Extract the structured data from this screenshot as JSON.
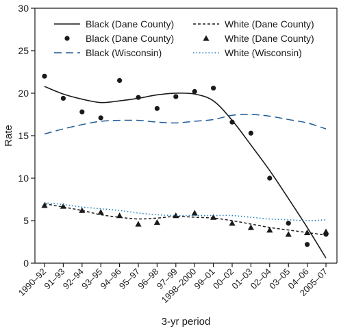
{
  "chart_data": {
    "type": "line",
    "xlabel": "3-yr period",
    "ylabel": "Rate",
    "ylim": [
      0,
      30
    ],
    "yticks": [
      0,
      5,
      10,
      15,
      20,
      25,
      30
    ],
    "grid": false,
    "legend_position": "top",
    "categories": [
      "1990–92",
      "91–93",
      "92–94",
      "93–95",
      "94–96",
      "95–97",
      "96–98",
      "97–99",
      "1998–2000",
      "99–01",
      "00–02",
      "01–03",
      "02–04",
      "03–05",
      "04–06",
      "2005–07"
    ],
    "series": [
      {
        "name": "Black (Dane County)",
        "kind": "smoothed-line",
        "color": "#1a1a1a",
        "dash": "solid",
        "values": [
          20.8,
          19.9,
          19.3,
          18.9,
          19.1,
          19.4,
          19.8,
          20.0,
          19.9,
          19.1,
          16.8,
          13.9,
          10.9,
          7.6,
          4.2,
          0.6
        ]
      },
      {
        "name": "Black (Dane County)",
        "kind": "observed-points",
        "marker": "circle",
        "color": "#1a1a1a",
        "values": [
          22.0,
          19.4,
          17.8,
          17.1,
          21.5,
          19.5,
          18.2,
          19.6,
          20.2,
          20.6,
          16.6,
          15.3,
          10.0,
          4.7,
          2.2,
          3.4
        ]
      },
      {
        "name": "Black (Wisconsin)",
        "kind": "smoothed-line",
        "color": "#1f5b96",
        "dash": "long-dash",
        "values": [
          15.2,
          15.8,
          16.3,
          16.7,
          16.8,
          16.8,
          16.6,
          16.5,
          16.7,
          16.9,
          17.4,
          17.5,
          17.3,
          16.9,
          16.5,
          15.8
        ]
      },
      {
        "name": "White (Dane County)",
        "kind": "smoothed-line",
        "color": "#1a1a1a",
        "dash": "short-dash",
        "values": [
          7.0,
          6.6,
          6.2,
          5.7,
          5.4,
          5.2,
          5.3,
          5.5,
          5.4,
          5.3,
          5.0,
          4.6,
          4.2,
          3.9,
          3.6,
          3.3
        ]
      },
      {
        "name": "White (Dane County)",
        "kind": "observed-points",
        "marker": "triangle",
        "color": "#1a1a1a",
        "values": [
          6.8,
          6.7,
          6.2,
          6.0,
          5.6,
          4.6,
          4.8,
          5.6,
          5.9,
          5.4,
          4.7,
          4.2,
          3.9,
          3.4,
          3.6,
          3.7
        ]
      },
      {
        "name": "White (Wisconsin)",
        "kind": "smoothed-line",
        "color": "#1f7fb8",
        "dash": "dotted",
        "values": [
          7.1,
          6.9,
          6.6,
          6.4,
          6.2,
          5.9,
          5.7,
          5.6,
          5.6,
          5.6,
          5.6,
          5.4,
          5.2,
          5.1,
          5.0,
          5.1
        ]
      }
    ]
  }
}
